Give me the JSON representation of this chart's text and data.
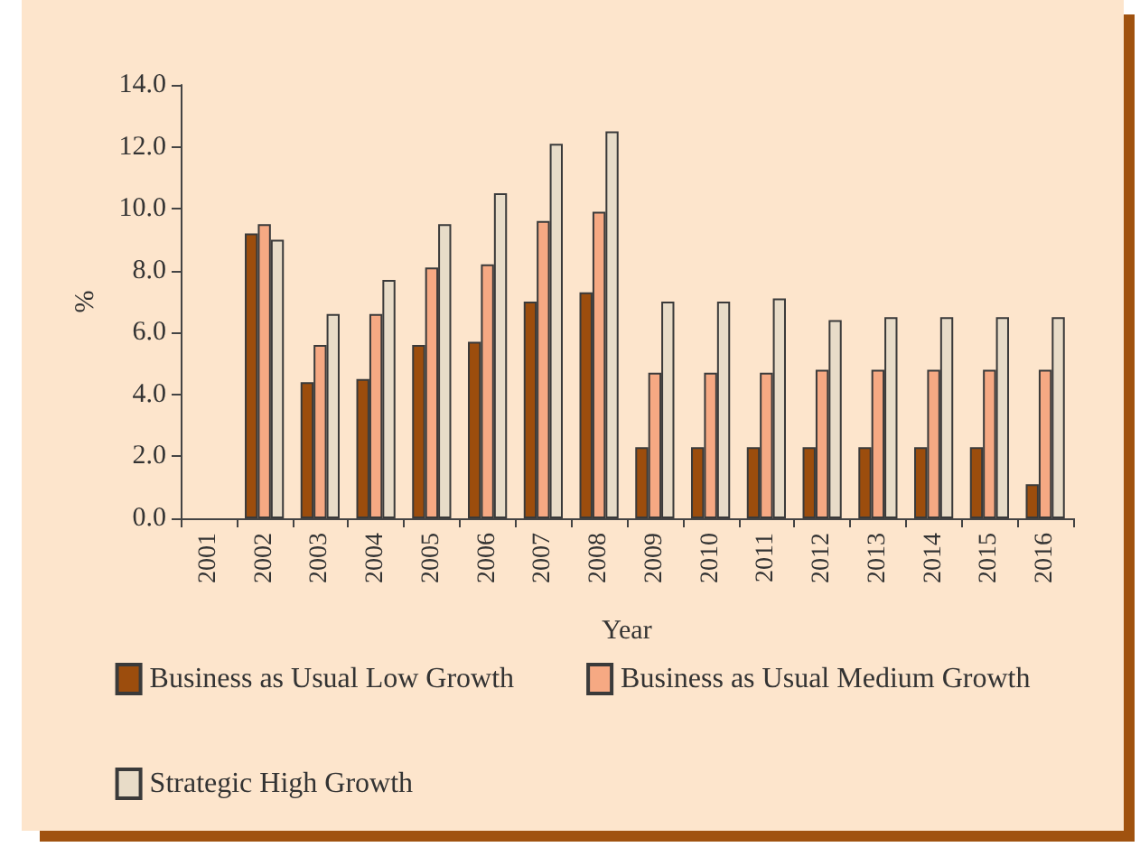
{
  "chart_data": {
    "type": "bar",
    "xlabel": "Year",
    "ylabel": "%",
    "categories": [
      "2001",
      "2002",
      "2003",
      "2004",
      "2005",
      "2006",
      "2007",
      "2008",
      "2009",
      "2010",
      "2011",
      "2012",
      "2013",
      "2014",
      "2015",
      "2016"
    ],
    "series": [
      {
        "name": "Business as Usual Low Growth",
        "color": "#9c4d0d",
        "values": [
          null,
          9.2,
          4.4,
          4.5,
          5.6,
          5.7,
          7.0,
          7.3,
          2.3,
          2.3,
          2.3,
          2.3,
          2.3,
          2.3,
          2.3,
          1.1
        ]
      },
      {
        "name": "Business as Usual Medium Growth",
        "color": "#f6a983",
        "values": [
          null,
          9.5,
          5.6,
          6.6,
          8.1,
          8.2,
          9.6,
          9.9,
          4.7,
          4.7,
          4.7,
          4.8,
          4.8,
          4.8,
          4.8,
          4.8
        ]
      },
      {
        "name": "Strategic High Growth",
        "color": "#e8dcc8",
        "values": [
          null,
          9.0,
          6.6,
          7.7,
          9.5,
          10.5,
          12.1,
          12.5,
          7.0,
          7.0,
          7.1,
          6.4,
          6.5,
          6.5,
          6.5,
          6.5
        ]
      }
    ],
    "ylim": [
      0,
      14
    ],
    "yticks": [
      {
        "value": 0,
        "label": "0.0"
      },
      {
        "value": 2,
        "label": "2.0"
      },
      {
        "value": 4,
        "label": "4.0"
      },
      {
        "value": 6,
        "label": "6.0"
      },
      {
        "value": 8,
        "label": "8.0"
      },
      {
        "value": 10,
        "label": "10.0"
      },
      {
        "value": 12,
        "label": "12.0"
      },
      {
        "value": 14,
        "label": "14.0"
      }
    ],
    "grid": false,
    "legend": "bottom"
  }
}
